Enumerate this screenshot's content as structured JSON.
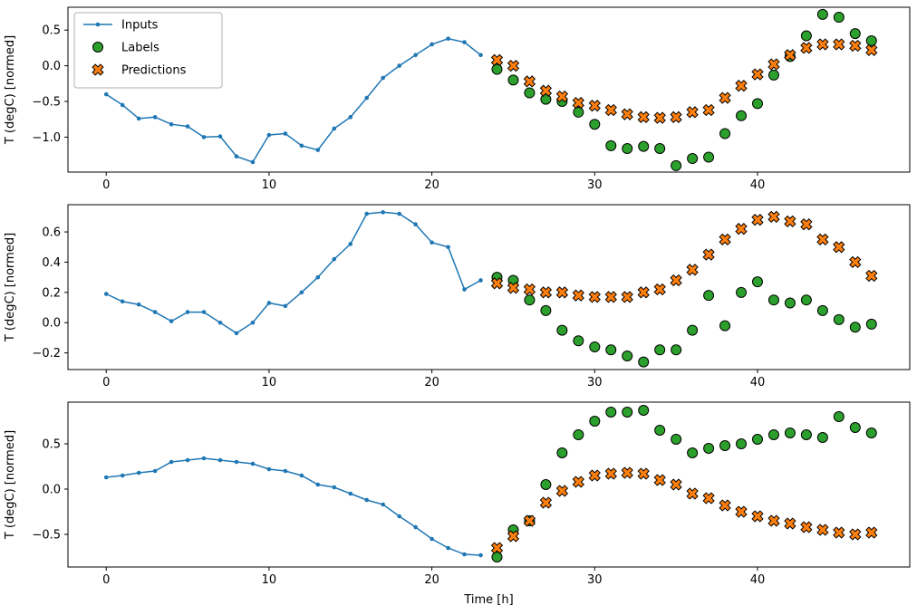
{
  "figure": {
    "xlabel": "Time [h]",
    "ylabel": "T (degC) [normed]"
  },
  "legend": {
    "items": [
      {
        "label": "Inputs",
        "marker": "line-dot",
        "color": "#1f77b4"
      },
      {
        "label": "Labels",
        "marker": "circle",
        "color": "#2ca02c"
      },
      {
        "label": "Predictions",
        "marker": "X",
        "color": "#ff7f0e"
      }
    ]
  },
  "colors": {
    "inputs": "#1f77b4",
    "labels": "#2ca02c",
    "predictions": "#ff7f0e",
    "marker_edge": "#000000",
    "legend_border": "#b0b0b0"
  },
  "chart_data": [
    {
      "type": "line+scatter",
      "ylabel": "T (degC) [normed]",
      "xlabel": "",
      "xlim": [
        -2.35,
        49.35
      ],
      "ylim": [
        -1.49,
        0.82
      ],
      "xticks": [
        0,
        10,
        20,
        30,
        40
      ],
      "yticks": [
        0.5,
        0.0,
        -0.5,
        -1.0
      ],
      "series": [
        {
          "name": "Inputs",
          "type": "line",
          "marker": "dot",
          "color": "#1f77b4",
          "x": [
            0,
            1,
            2,
            3,
            4,
            5,
            6,
            7,
            8,
            9,
            10,
            11,
            12,
            13,
            14,
            15,
            16,
            17,
            18,
            19,
            20,
            21,
            22,
            23
          ],
          "y": [
            -0.4,
            -0.55,
            -0.74,
            -0.72,
            -0.82,
            -0.85,
            -1.0,
            -0.99,
            -1.27,
            -1.35,
            -0.97,
            -0.95,
            -1.12,
            -1.18,
            -0.88,
            -0.72,
            -0.45,
            -0.17,
            0.0,
            0.15,
            0.3,
            0.38,
            0.33,
            0.15
          ]
        },
        {
          "name": "Labels",
          "type": "scatter",
          "marker": "circle",
          "color": "#2ca02c",
          "x": [
            24,
            25,
            26,
            27,
            28,
            29,
            30,
            31,
            32,
            33,
            34,
            35,
            36,
            37,
            38,
            39,
            40,
            41,
            42,
            43,
            44,
            45,
            46,
            47
          ],
          "y": [
            -0.05,
            -0.2,
            -0.38,
            -0.47,
            -0.5,
            -0.65,
            -0.82,
            -1.12,
            -1.16,
            -1.13,
            -1.16,
            -1.4,
            -1.3,
            -1.28,
            -0.95,
            -0.7,
            -0.53,
            -0.13,
            0.13,
            0.42,
            0.72,
            0.68,
            0.45,
            0.35
          ]
        },
        {
          "name": "Predictions",
          "type": "scatter",
          "marker": "X",
          "color": "#ff7f0e",
          "x": [
            24,
            25,
            26,
            27,
            28,
            29,
            30,
            31,
            32,
            33,
            34,
            35,
            36,
            37,
            38,
            39,
            40,
            41,
            42,
            43,
            44,
            45,
            46,
            47
          ],
          "y": [
            0.08,
            0.0,
            -0.22,
            -0.35,
            -0.43,
            -0.52,
            -0.56,
            -0.62,
            -0.68,
            -0.72,
            -0.73,
            -0.72,
            -0.65,
            -0.62,
            -0.45,
            -0.28,
            -0.12,
            0.02,
            0.15,
            0.25,
            0.3,
            0.3,
            0.28,
            0.22
          ]
        }
      ]
    },
    {
      "type": "line+scatter",
      "ylabel": "T (degC) [normed]",
      "xlabel": "",
      "xlim": [
        -2.35,
        49.35
      ],
      "ylim": [
        -0.31,
        0.78
      ],
      "xticks": [
        0,
        10,
        20,
        30,
        40
      ],
      "yticks": [
        0.6,
        0.4,
        0.2,
        0.0,
        -0.2
      ],
      "series": [
        {
          "name": "Inputs",
          "type": "line",
          "marker": "dot",
          "color": "#1f77b4",
          "x": [
            0,
            1,
            2,
            3,
            4,
            5,
            6,
            7,
            8,
            9,
            10,
            11,
            12,
            13,
            14,
            15,
            16,
            17,
            18,
            19,
            20,
            21,
            22,
            23
          ],
          "y": [
            0.19,
            0.14,
            0.12,
            0.07,
            0.01,
            0.07,
            0.07,
            0.0,
            -0.07,
            0.0,
            0.13,
            0.11,
            0.2,
            0.3,
            0.42,
            0.52,
            0.72,
            0.73,
            0.72,
            0.65,
            0.53,
            0.5,
            0.22,
            0.28
          ]
        },
        {
          "name": "Labels",
          "type": "scatter",
          "marker": "circle",
          "color": "#2ca02c",
          "x": [
            24,
            25,
            26,
            27,
            28,
            29,
            30,
            31,
            32,
            33,
            34,
            35,
            36,
            37,
            38,
            39,
            40,
            41,
            42,
            43,
            44,
            45,
            46,
            47
          ],
          "y": [
            0.3,
            0.28,
            0.15,
            0.08,
            -0.05,
            -0.12,
            -0.16,
            -0.18,
            -0.22,
            -0.26,
            -0.18,
            -0.18,
            -0.05,
            0.18,
            -0.02,
            0.2,
            0.27,
            0.15,
            0.13,
            0.15,
            0.08,
            0.02,
            -0.03,
            -0.01
          ]
        },
        {
          "name": "Predictions",
          "type": "scatter",
          "marker": "X",
          "color": "#ff7f0e",
          "x": [
            24,
            25,
            26,
            27,
            28,
            29,
            30,
            31,
            32,
            33,
            34,
            35,
            36,
            37,
            38,
            39,
            40,
            41,
            42,
            43,
            44,
            45,
            46,
            47
          ],
          "y": [
            0.26,
            0.23,
            0.22,
            0.2,
            0.2,
            0.18,
            0.17,
            0.17,
            0.17,
            0.2,
            0.22,
            0.28,
            0.35,
            0.45,
            0.55,
            0.62,
            0.68,
            0.7,
            0.67,
            0.65,
            0.55,
            0.5,
            0.4,
            0.31
          ]
        }
      ]
    },
    {
      "type": "line+scatter",
      "ylabel": "T (degC) [normed]",
      "xlabel": "Time [h]",
      "xlim": [
        -2.35,
        49.35
      ],
      "ylim": [
        -0.86,
        0.96
      ],
      "xticks": [
        0,
        10,
        20,
        30,
        40
      ],
      "yticks": [
        0.5,
        0.0,
        -0.5
      ],
      "series": [
        {
          "name": "Inputs",
          "type": "line",
          "marker": "dot",
          "color": "#1f77b4",
          "x": [
            0,
            1,
            2,
            3,
            4,
            5,
            6,
            7,
            8,
            9,
            10,
            11,
            12,
            13,
            14,
            15,
            16,
            17,
            18,
            19,
            20,
            21,
            22,
            23
          ],
          "y": [
            0.13,
            0.15,
            0.18,
            0.2,
            0.3,
            0.32,
            0.34,
            0.32,
            0.3,
            0.28,
            0.22,
            0.2,
            0.15,
            0.05,
            0.02,
            -0.05,
            -0.12,
            -0.17,
            -0.3,
            -0.42,
            -0.55,
            -0.65,
            -0.72,
            -0.73
          ]
        },
        {
          "name": "Labels",
          "type": "scatter",
          "marker": "circle",
          "color": "#2ca02c",
          "x": [
            24,
            25,
            26,
            27,
            28,
            29,
            30,
            31,
            32,
            33,
            34,
            35,
            36,
            37,
            38,
            39,
            40,
            41,
            42,
            43,
            44,
            45,
            46,
            47
          ],
          "y": [
            -0.75,
            -0.45,
            -0.35,
            0.05,
            0.4,
            0.6,
            0.75,
            0.85,
            0.85,
            0.87,
            0.65,
            0.55,
            0.4,
            0.45,
            0.48,
            0.5,
            0.55,
            0.6,
            0.62,
            0.6,
            0.57,
            0.8,
            0.68,
            0.62
          ]
        },
        {
          "name": "Predictions",
          "type": "scatter",
          "marker": "X",
          "color": "#ff7f0e",
          "x": [
            24,
            25,
            26,
            27,
            28,
            29,
            30,
            31,
            32,
            33,
            34,
            35,
            36,
            37,
            38,
            39,
            40,
            41,
            42,
            43,
            44,
            45,
            46,
            47
          ],
          "y": [
            -0.65,
            -0.52,
            -0.35,
            -0.15,
            -0.02,
            0.08,
            0.15,
            0.17,
            0.18,
            0.17,
            0.1,
            0.05,
            -0.05,
            -0.1,
            -0.18,
            -0.25,
            -0.3,
            -0.35,
            -0.38,
            -0.42,
            -0.45,
            -0.48,
            -0.5,
            -0.48
          ]
        }
      ]
    }
  ]
}
